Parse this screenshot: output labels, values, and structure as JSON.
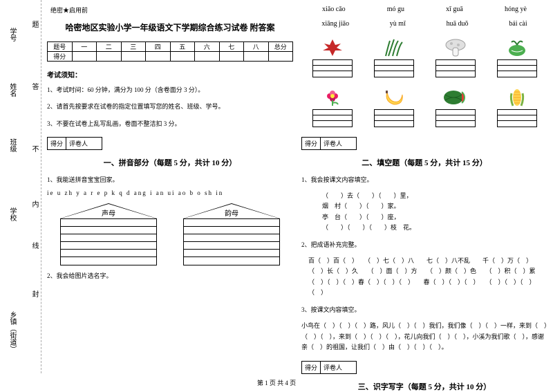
{
  "leftMargin": {
    "l1": "学号",
    "l2": "姓名",
    "l3": "班级",
    "l4": "学校",
    "l5": "乡镇（街道）",
    "t1": "题",
    "t2": "答",
    "t3": "不",
    "t4": "内",
    "t5": "线",
    "t6": "封"
  },
  "headerSmall": "绝密★启用前",
  "title": "哈密地区实验小学一年级语文下学期综合练习试卷 附答案",
  "scoreTable": {
    "headers": [
      "题号",
      "一",
      "二",
      "三",
      "四",
      "五",
      "六",
      "七",
      "八",
      "总分"
    ],
    "row2": "得分"
  },
  "examNotice": "考试须知：",
  "notices": [
    "1、考试时间：60 分钟，满分为 100 分（含卷面分 3 分）。",
    "2、请首先按要求在试卷的指定位置填写您的姓名、班级、学号。",
    "3、不要在试卷上乱写乱画，卷面不整洁扣 3 分。"
  ],
  "scoreBox": {
    "a": "得分",
    "b": "评卷人"
  },
  "section1": {
    "heading": "一、拼音部分（每题 5 分，共计 10 分）",
    "q1": "1、我能送拼音宝宝回家。",
    "letters": "ie u zh y a r e p k q d ang i an ui ao b o sh in",
    "house1": "声母",
    "house2": "韵母",
    "q2": "2、我会给图片选名字。"
  },
  "pinyinRow1": [
    "xiǎo cǎo",
    "mó gu",
    "xī guā",
    "hóng yè"
  ],
  "pinyinRow2": [
    "xiāng jiāo",
    "yù mǐ",
    "huā duǒ",
    "bái cài"
  ],
  "section2": {
    "heading": "二、填空题（每题 5 分，共计 15 分）",
    "q1": "1、我会按课文内容填空。",
    "fills": "（　　）去（　　）（　　）里，\n烟　村（　　）（　　）家。\n亭　台（　　）（　　）座，\n（　　）（　　）（　　）枝　花。",
    "q2": "2、把成语补充完整。",
    "q2fills": "百（　）百（　）　　（　）七（　）八　　七（　）八不乱　　千（　）万（　）\n（　）长（　）久　　（　）面（　）方　　（　）颜（　）色　　（　）积（　）累\n（　）（　）（　）春（　）（　）（　）　　春（　）（　）（　）　　（　）（　）（　）（　）",
    "q3": "3、按课文内容填空。",
    "q3fills": "小鸟在（　）（　）（　）路，风儿（　）（　）我们，我们像（　）（　）一样，来到（　）（　）（　），来到（　）（　）（　），花儿向我们（　）（　），小溪为我们歌（　），感谢亲（　）的祖国，让我们（　）由（　）（　）（　）。"
  },
  "section3": {
    "heading": "三、识字写字（每题 5 分，共计 10 分）"
  },
  "footer": "第 1 页 共 4 页"
}
